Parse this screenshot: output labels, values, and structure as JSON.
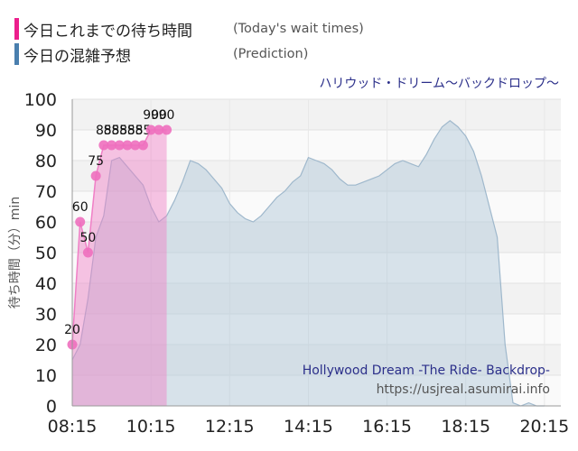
{
  "legend": [
    {
      "label": "今日これまでの待ち時間",
      "sublabel": "(Today's wait times)",
      "color": "#ec1f8c"
    },
    {
      "label": "今日の混雑予想",
      "sublabel": "(Prediction)",
      "color": "#4a7fae"
    }
  ],
  "attraction_jp": "ハリウッド・ドリーム～バックドロップ～",
  "attraction_en": "Hollywood Dream -The Ride- Backdrop-",
  "source_url": "https://usjreal.asumirai.info",
  "colors": {
    "actual_fill": "#f07fc6",
    "actual_line": "#f07fc6",
    "actual_marker": "#ee6fbe",
    "prediction_fill": "#aec6d8",
    "prediction_line": "#9fb8cc",
    "title_color": "#2b2f8a"
  },
  "chart_data": {
    "type": "area",
    "title": "",
    "ylabel": "待ち時間（分）min",
    "xlabel": "",
    "ylim": [
      0,
      100
    ],
    "y_ticks": [
      "0",
      "10",
      "20",
      "30",
      "40",
      "50",
      "60",
      "70",
      "80",
      "90",
      "100"
    ],
    "x_range_minutes": [
      "08:15",
      "20:40"
    ],
    "x_ticks": [
      "08:15",
      "10:15",
      "12:15",
      "14:15",
      "16:15",
      "18:15",
      "20:15"
    ],
    "grid": true,
    "series": [
      {
        "name": "今日これまでの待ち時間",
        "kind": "actual",
        "x": [
          "08:15",
          "08:27",
          "08:39",
          "08:51",
          "09:03",
          "09:15",
          "09:27",
          "09:39",
          "09:51",
          "10:03",
          "10:15",
          "10:27",
          "10:39"
        ],
        "values": [
          20,
          60,
          50,
          75,
          85,
          85,
          85,
          85,
          85,
          85,
          90,
          90,
          90
        ],
        "labels": [
          "20",
          "60",
          "50",
          "75",
          "85",
          "85",
          "85",
          "85",
          "85",
          "85",
          "90",
          "90",
          "90"
        ]
      },
      {
        "name": "今日の混雑予想",
        "kind": "prediction",
        "x": [
          "08:15",
          "08:27",
          "08:39",
          "08:51",
          "09:03",
          "09:15",
          "09:27",
          "09:39",
          "09:51",
          "10:03",
          "10:15",
          "10:27",
          "10:39",
          "10:51",
          "11:03",
          "11:15",
          "11:27",
          "11:39",
          "11:51",
          "12:03",
          "12:15",
          "12:27",
          "12:39",
          "12:51",
          "13:03",
          "13:15",
          "13:27",
          "13:39",
          "13:51",
          "14:03",
          "14:15",
          "14:27",
          "14:39",
          "14:51",
          "15:03",
          "15:15",
          "15:27",
          "15:39",
          "15:51",
          "16:03",
          "16:15",
          "16:27",
          "16:39",
          "16:51",
          "17:03",
          "17:15",
          "17:27",
          "17:39",
          "17:51",
          "18:03",
          "18:15",
          "18:27",
          "18:39",
          "18:51",
          "19:03",
          "19:15",
          "19:27",
          "19:39",
          "19:51",
          "20:03",
          "20:15"
        ],
        "values": [
          15,
          20,
          35,
          55,
          62,
          80,
          81,
          78,
          75,
          72,
          65,
          60,
          62,
          67,
          73,
          80,
          79,
          77,
          74,
          71,
          66,
          63,
          61,
          60,
          62,
          65,
          68,
          70,
          73,
          75,
          81,
          80,
          79,
          77,
          74,
          72,
          72,
          73,
          74,
          75,
          77,
          79,
          80,
          79,
          78,
          82,
          87,
          91,
          93,
          91,
          88,
          83,
          75,
          65,
          55,
          20,
          1,
          0,
          1,
          0,
          0
        ]
      }
    ]
  }
}
